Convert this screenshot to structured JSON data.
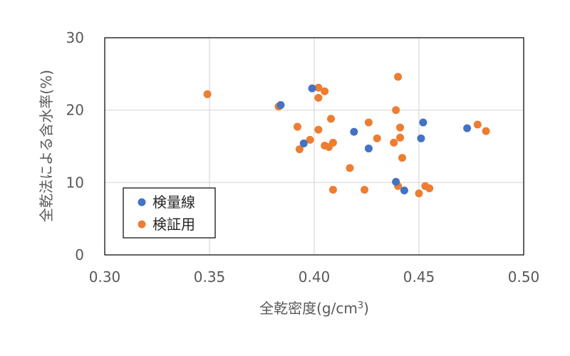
{
  "chart_data": {
    "type": "scatter",
    "xlabel": "全乾密度(g/cm",
    "xlabel_sup": "3",
    "xlabel_close": ")",
    "ylabel": "全乾法による含水率(%)",
    "xlim": [
      0.3,
      0.5
    ],
    "ylim": [
      0,
      30
    ],
    "xticks": [
      "0.30",
      "0.35",
      "0.40",
      "0.45",
      "0.50"
    ],
    "yticks": [
      "0",
      "10",
      "20",
      "30"
    ],
    "grid": true,
    "legend_position": "bottom-left",
    "series": [
      {
        "name": "検量線",
        "color": "#4472C4",
        "points": [
          [
            0.384,
            20.7
          ],
          [
            0.395,
            15.4
          ],
          [
            0.399,
            23.0
          ],
          [
            0.419,
            17.0
          ],
          [
            0.426,
            14.7
          ],
          [
            0.439,
            10.1
          ],
          [
            0.443,
            8.9
          ],
          [
            0.451,
            16.1
          ],
          [
            0.452,
            18.3
          ],
          [
            0.473,
            17.5
          ]
        ]
      },
      {
        "name": "検証用",
        "color": "#ED7D31",
        "points": [
          [
            0.349,
            22.2
          ],
          [
            0.383,
            20.5
          ],
          [
            0.392,
            17.7
          ],
          [
            0.393,
            14.6
          ],
          [
            0.398,
            15.9
          ],
          [
            0.402,
            23.1
          ],
          [
            0.402,
            21.7
          ],
          [
            0.402,
            17.3
          ],
          [
            0.405,
            22.6
          ],
          [
            0.405,
            15.1
          ],
          [
            0.407,
            14.9
          ],
          [
            0.408,
            18.8
          ],
          [
            0.409,
            15.5
          ],
          [
            0.409,
            9.0
          ],
          [
            0.417,
            12.0
          ],
          [
            0.424,
            9.0
          ],
          [
            0.426,
            18.3
          ],
          [
            0.43,
            16.1
          ],
          [
            0.438,
            15.5
          ],
          [
            0.439,
            20.0
          ],
          [
            0.44,
            9.5
          ],
          [
            0.44,
            24.6
          ],
          [
            0.441,
            17.6
          ],
          [
            0.441,
            16.2
          ],
          [
            0.442,
            13.4
          ],
          [
            0.45,
            8.5
          ],
          [
            0.453,
            9.5
          ],
          [
            0.455,
            9.2
          ],
          [
            0.478,
            18.0
          ],
          [
            0.482,
            17.1
          ]
        ]
      }
    ]
  }
}
